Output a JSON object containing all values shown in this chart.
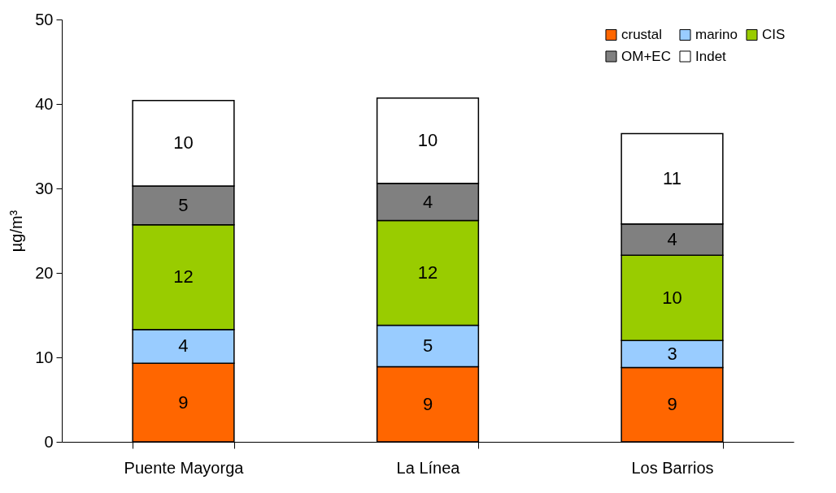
{
  "chart_data": {
    "type": "bar",
    "stacked": true,
    "ylabel": "µg/m³",
    "categories": [
      "Puente Mayorga",
      "La Línea",
      "Los Barrios"
    ],
    "series": [
      {
        "name": "crustal",
        "color": "#ff6600",
        "values": [
          9.3,
          8.9,
          8.8
        ],
        "value_labels": [
          "9",
          "9",
          "9"
        ]
      },
      {
        "name": "marino",
        "color": "#99ccff",
        "values": [
          4.0,
          4.9,
          3.2
        ],
        "value_labels": [
          "4",
          "5",
          "3"
        ]
      },
      {
        "name": "CIS",
        "color": "#99cc00",
        "values": [
          12.4,
          12.4,
          10.1
        ],
        "value_labels": [
          "12",
          "12",
          "10"
        ]
      },
      {
        "name": "OM+EC",
        "color": "#808080",
        "values": [
          4.6,
          4.4,
          3.7
        ],
        "value_labels": [
          "5",
          "4",
          "4"
        ]
      },
      {
        "name": "Indet",
        "color": "#ffffff",
        "values": [
          10.1,
          10.1,
          10.7
        ],
        "value_labels": [
          "10",
          "10",
          "11"
        ]
      }
    ],
    "ylim": [
      0,
      50
    ],
    "yticks": [
      0,
      10,
      20,
      30,
      40,
      50
    ],
    "grid": false,
    "legend": "top right"
  }
}
